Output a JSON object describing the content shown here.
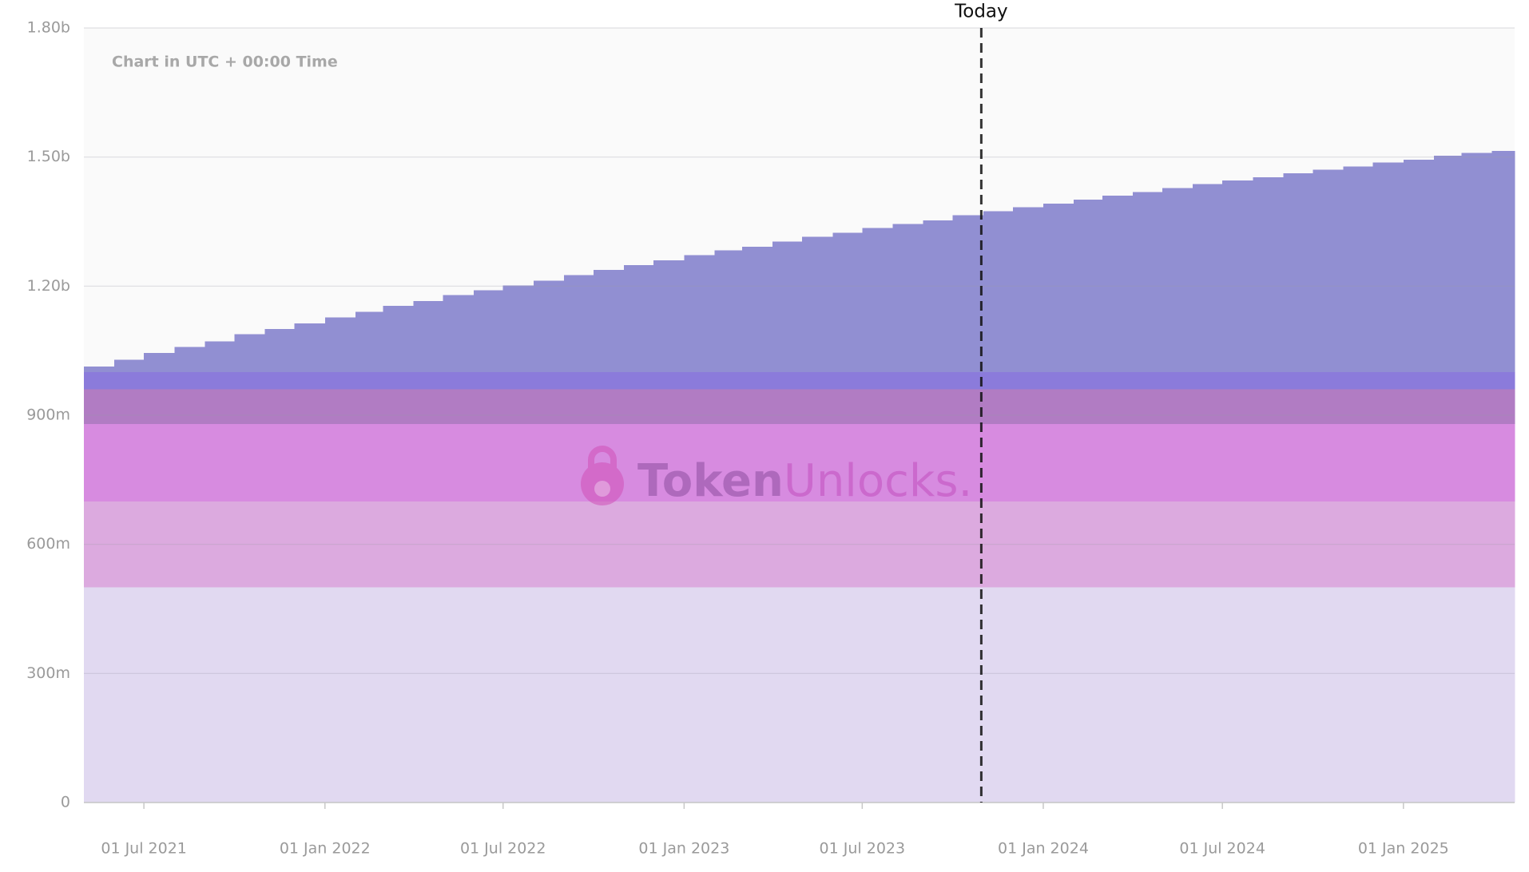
{
  "chart_data": {
    "type": "stacked-step-area",
    "subtitle": "Chart in UTC + 00:00 Time",
    "watermark": {
      "parts": [
        "Token",
        "Unlocks."
      ]
    },
    "x": [
      "2021-05-01",
      "2021-06-01",
      "2021-07-01",
      "2021-08-01",
      "2021-09-01",
      "2021-10-01",
      "2021-11-01",
      "2021-12-01",
      "2022-01-01",
      "2022-02-01",
      "2022-03-01",
      "2022-04-01",
      "2022-05-01",
      "2022-06-01",
      "2022-07-01",
      "2022-08-01",
      "2022-09-01",
      "2022-10-01",
      "2022-11-01",
      "2022-12-01",
      "2023-01-01",
      "2023-02-01",
      "2023-03-01",
      "2023-04-01",
      "2023-05-01",
      "2023-06-01",
      "2023-07-01",
      "2023-08-01",
      "2023-09-01",
      "2023-10-01",
      "2023-11-01",
      "2023-12-01",
      "2024-01-01",
      "2024-02-01",
      "2024-03-01",
      "2024-04-01",
      "2024-05-01",
      "2024-06-01",
      "2024-07-01",
      "2024-08-01",
      "2024-09-01",
      "2024-10-01",
      "2024-11-01",
      "2024-12-01",
      "2025-01-01",
      "2025-02-01",
      "2025-03-01",
      "2025-04-01"
    ],
    "xlim": [
      "2021-05-01",
      "2025-04-24"
    ],
    "xticks": [
      {
        "value": "2021-07-01",
        "label": "01 Jul 2021"
      },
      {
        "value": "2022-01-01",
        "label": "01 Jan 2022"
      },
      {
        "value": "2022-07-01",
        "label": "01 Jul 2022"
      },
      {
        "value": "2023-01-01",
        "label": "01 Jan 2023"
      },
      {
        "value": "2023-07-01",
        "label": "01 Jul 2023"
      },
      {
        "value": "2024-01-01",
        "label": "01 Jan 2024"
      },
      {
        "value": "2024-07-01",
        "label": "01 Jul 2024"
      },
      {
        "value": "2025-01-01",
        "label": "01 Jan 2025"
      }
    ],
    "ylim": [
      0,
      1800000000.0
    ],
    "yticks": [
      0,
      {
        "value": 300000000.0,
        "label": "300m"
      },
      {
        "value": 600000000.0,
        "label": "600m"
      },
      {
        "value": 900000000.0,
        "label": "900m"
      },
      {
        "value": 1200000000.0,
        "label": "1.20b"
      },
      {
        "value": 1500000000.0,
        "label": "1.50b"
      },
      {
        "value": 1800000000.0,
        "label": "1.80b"
      }
    ],
    "grid": true,
    "annotations": [
      {
        "x": "2023-10-30",
        "label": "Today"
      }
    ],
    "series": [
      {
        "color": "#e1d9f1",
        "values": [
          500000000.0,
          500000000.0,
          500000000.0,
          500000000.0,
          500000000.0,
          500000000.0,
          500000000.0,
          500000000.0,
          500000000.0,
          500000000.0,
          500000000.0,
          500000000.0,
          500000000.0,
          500000000.0,
          500000000.0,
          500000000.0,
          500000000.0,
          500000000.0,
          500000000.0,
          500000000.0,
          500000000.0,
          500000000.0,
          500000000.0,
          500000000.0,
          500000000.0,
          500000000.0,
          500000000.0,
          500000000.0,
          500000000.0,
          500000000.0,
          500000000.0,
          500000000.0,
          500000000.0,
          500000000.0,
          500000000.0,
          500000000.0,
          500000000.0,
          500000000.0,
          500000000.0,
          500000000.0,
          500000000.0,
          500000000.0,
          500000000.0,
          500000000.0,
          500000000.0,
          500000000.0,
          500000000.0,
          500000000.0
        ]
      },
      {
        "color": "#dcaadf",
        "values": [
          200000000.0,
          200000000.0,
          200000000.0,
          200000000.0,
          200000000.0,
          200000000.0,
          200000000.0,
          200000000.0,
          200000000.0,
          200000000.0,
          200000000.0,
          200000000.0,
          200000000.0,
          200000000.0,
          200000000.0,
          200000000.0,
          200000000.0,
          200000000.0,
          200000000.0,
          200000000.0,
          200000000.0,
          200000000.0,
          200000000.0,
          200000000.0,
          200000000.0,
          200000000.0,
          200000000.0,
          200000000.0,
          200000000.0,
          200000000.0,
          200000000.0,
          200000000.0,
          200000000.0,
          200000000.0,
          200000000.0,
          200000000.0,
          200000000.0,
          200000000.0,
          200000000.0,
          200000000.0,
          200000000.0,
          200000000.0,
          200000000.0,
          200000000.0,
          200000000.0,
          200000000.0,
          200000000.0,
          200000000.0
        ]
      },
      {
        "color": "#d78be0",
        "values": [
          180000000.0,
          180000000.0,
          180000000.0,
          180000000.0,
          180000000.0,
          180000000.0,
          180000000.0,
          180000000.0,
          180000000.0,
          180000000.0,
          180000000.0,
          180000000.0,
          180000000.0,
          180000000.0,
          180000000.0,
          180000000.0,
          180000000.0,
          180000000.0,
          180000000.0,
          180000000.0,
          180000000.0,
          180000000.0,
          180000000.0,
          180000000.0,
          180000000.0,
          180000000.0,
          180000000.0,
          180000000.0,
          180000000.0,
          180000000.0,
          180000000.0,
          180000000.0,
          180000000.0,
          180000000.0,
          180000000.0,
          180000000.0,
          180000000.0,
          180000000.0,
          180000000.0,
          180000000.0,
          180000000.0,
          180000000.0,
          180000000.0,
          180000000.0,
          180000000.0,
          180000000.0,
          180000000.0,
          180000000.0
        ]
      },
      {
        "color": "#b17cc3",
        "values": [
          80000000.0,
          80000000.0,
          80000000.0,
          80000000.0,
          80000000.0,
          80000000.0,
          80000000.0,
          80000000.0,
          80000000.0,
          80000000.0,
          80000000.0,
          80000000.0,
          80000000.0,
          80000000.0,
          80000000.0,
          80000000.0,
          80000000.0,
          80000000.0,
          80000000.0,
          80000000.0,
          80000000.0,
          80000000.0,
          80000000.0,
          80000000.0,
          80000000.0,
          80000000.0,
          80000000.0,
          80000000.0,
          80000000.0,
          80000000.0,
          80000000.0,
          80000000.0,
          80000000.0,
          80000000.0,
          80000000.0,
          80000000.0,
          80000000.0,
          80000000.0,
          80000000.0,
          80000000.0,
          80000000.0,
          80000000.0,
          80000000.0,
          80000000.0,
          80000000.0,
          80000000.0,
          80000000.0,
          80000000.0
        ]
      },
      {
        "color": "#8b7bdb",
        "values": [
          40000000.0,
          40000000.0,
          40000000.0,
          40000000.0,
          40000000.0,
          40000000.0,
          40000000.0,
          40000000.0,
          40000000.0,
          40000000.0,
          40000000.0,
          40000000.0,
          40000000.0,
          40000000.0,
          40000000.0,
          40000000.0,
          40000000.0,
          40000000.0,
          40000000.0,
          40000000.0,
          40000000.0,
          40000000.0,
          40000000.0,
          40000000.0,
          40000000.0,
          40000000.0,
          40000000.0,
          40000000.0,
          40000000.0,
          40000000.0,
          40000000.0,
          40000000.0,
          40000000.0,
          40000000.0,
          40000000.0,
          40000000.0,
          40000000.0,
          40000000.0,
          40000000.0,
          40000000.0,
          40000000.0,
          40000000.0,
          40000000.0,
          40000000.0,
          40000000.0,
          40000000.0,
          40000000.0,
          40000000.0
        ]
      },
      {
        "color": "#918fd2",
        "values": [
          13000000.0,
          29000000.0,
          45000000.0,
          59000000.0,
          72000000.0,
          88000000.0,
          100000000.0,
          113000000.0,
          127000000.0,
          140000000.0,
          154000000.0,
          165000000.0,
          179000000.0,
          190000000.0,
          202000000.0,
          213000000.0,
          226000000.0,
          238000000.0,
          249000000.0,
          260000000.0,
          272000000.0,
          283000000.0,
          292000000.0,
          304000000.0,
          315000000.0,
          324000000.0,
          335000000.0,
          344000000.0,
          353000000.0,
          365000000.0,
          374000000.0,
          383000000.0,
          392000000.0,
          401000000.0,
          410000000.0,
          419000000.0,
          428000000.0,
          437000000.0,
          446000000.0,
          453000000.0,
          462000000.0,
          471000000.0,
          478000000.0,
          487000000.0,
          494000000.0,
          503000000.0,
          510000000.0,
          514000000.0
        ]
      }
    ]
  }
}
